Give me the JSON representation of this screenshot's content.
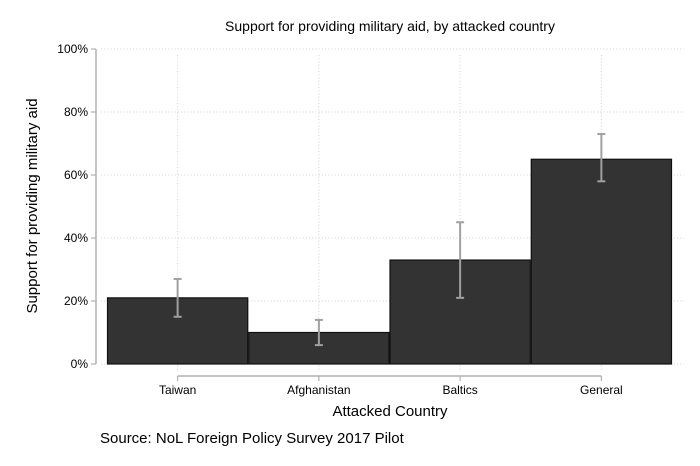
{
  "chart_data": {
    "type": "bar",
    "title": "Support for providing military aid, by attacked country",
    "xlabel": "Attacked Country",
    "ylabel": "Support for providing military aid",
    "categories": [
      "Taiwan",
      "Afghanistan",
      "Baltics",
      "General"
    ],
    "values": [
      21,
      10,
      33,
      65
    ],
    "error_bars": {
      "lower": [
        15,
        6,
        21,
        58
      ],
      "upper": [
        27,
        14,
        45,
        73
      ]
    },
    "ylim": [
      0,
      100
    ],
    "yticks": [
      0,
      20,
      40,
      60,
      80,
      100
    ],
    "ytick_labels": [
      "0%",
      "20%",
      "40%",
      "60%",
      "80%",
      "100%"
    ],
    "grid": true,
    "legend": null,
    "note": "Source: NoL Foreign Policy Survey 2017 Pilot",
    "colors": {
      "bar_fill": "#333333",
      "bar_edge": "#111111",
      "error_bar": "#a0a0a0",
      "axis": "#b0b0b0",
      "grid": "#d0d0d0"
    }
  }
}
